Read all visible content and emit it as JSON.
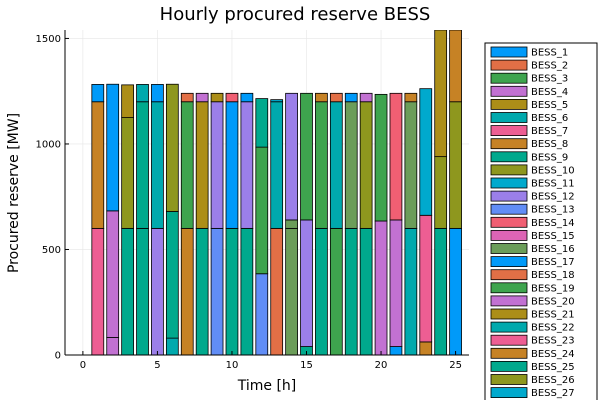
{
  "chart_data": {
    "type": "bar",
    "stacked": true,
    "title": "Hourly procured reserve BESS",
    "xlabel": "Time [h]",
    "ylabel": "Procured reserve [MW]",
    "xlim": [
      -1.2,
      25.9
    ],
    "ylim": [
      0,
      1540
    ],
    "xticks": [
      0,
      5,
      10,
      15,
      20,
      25
    ],
    "yticks": [
      0,
      500,
      1000,
      1500
    ],
    "grid": true,
    "legend_position": "right-outside",
    "series_colors": [
      "#009af9",
      "#e26f46",
      "#3ea44e",
      "#c271d2",
      "#ac8e18",
      "#00a9ad",
      "#ed5e93",
      "#c68225",
      "#00a98d",
      "#8e971e",
      "#00a9cd",
      "#9b7fe9",
      "#618df6",
      "#f05f73",
      "#dd64b5",
      "#6b9d59",
      "#009af9",
      "#e26f46",
      "#3ea44e",
      "#c271d2",
      "#ac8e18",
      "#00a9ad",
      "#ed5e93",
      "#c68225",
      "#00a98d",
      "#8e971e",
      "#00a9cd"
    ],
    "series": [
      {
        "name": "BESS_1"
      },
      {
        "name": "BESS_2"
      },
      {
        "name": "BESS_3"
      },
      {
        "name": "BESS_4"
      },
      {
        "name": "BESS_5"
      },
      {
        "name": "BESS_6"
      },
      {
        "name": "BESS_7"
      },
      {
        "name": "BESS_8"
      },
      {
        "name": "BESS_9"
      },
      {
        "name": "BESS_10"
      },
      {
        "name": "BESS_11"
      },
      {
        "name": "BESS_12"
      },
      {
        "name": "BESS_13"
      },
      {
        "name": "BESS_14"
      },
      {
        "name": "BESS_15"
      },
      {
        "name": "BESS_16"
      },
      {
        "name": "BESS_17"
      },
      {
        "name": "BESS_18"
      },
      {
        "name": "BESS_19"
      },
      {
        "name": "BESS_20"
      },
      {
        "name": "BESS_21"
      },
      {
        "name": "BESS_22"
      },
      {
        "name": "BESS_23"
      },
      {
        "name": "BESS_24"
      },
      {
        "name": "BESS_25"
      },
      {
        "name": "BESS_26"
      },
      {
        "name": "BESS_27"
      }
    ],
    "hours": [
      {
        "x": 1,
        "segments": [
          [
            22,
            600
          ],
          [
            23,
            600
          ],
          [
            0,
            82
          ]
        ]
      },
      {
        "x": 2,
        "segments": [
          [
            19,
            83
          ],
          [
            3,
            600
          ],
          [
            0,
            600
          ]
        ]
      },
      {
        "x": 3,
        "segments": [
          [
            8,
            600
          ],
          [
            9,
            525
          ],
          [
            4,
            155
          ]
        ]
      },
      {
        "x": 4,
        "segments": [
          [
            24,
            600
          ],
          [
            8,
            600
          ],
          [
            5,
            82
          ]
        ]
      },
      {
        "x": 5,
        "segments": [
          [
            11,
            600
          ],
          [
            5,
            600
          ],
          [
            0,
            82
          ]
        ]
      },
      {
        "x": 6,
        "segments": [
          [
            5,
            80
          ],
          [
            8,
            600
          ],
          [
            9,
            603
          ]
        ]
      },
      {
        "x": 7,
        "segments": [
          [
            7,
            600
          ],
          [
            2,
            600
          ],
          [
            1,
            40
          ]
        ]
      },
      {
        "x": 8,
        "segments": [
          [
            8,
            600
          ],
          [
            4,
            600
          ],
          [
            3,
            40
          ]
        ]
      },
      {
        "x": 9,
        "segments": [
          [
            12,
            600
          ],
          [
            11,
            600
          ],
          [
            4,
            40
          ]
        ]
      },
      {
        "x": 10,
        "segments": [
          [
            8,
            600
          ],
          [
            0,
            600
          ],
          [
            13,
            40
          ]
        ]
      },
      {
        "x": 11,
        "segments": [
          [
            8,
            600
          ],
          [
            11,
            600
          ],
          [
            0,
            40
          ]
        ]
      },
      {
        "x": 12,
        "segments": [
          [
            12,
            385
          ],
          [
            2,
            600
          ],
          [
            8,
            230
          ]
        ]
      },
      {
        "x": 13,
        "segments": [
          [
            1,
            600
          ],
          [
            5,
            600
          ],
          [
            10,
            10
          ]
        ]
      },
      {
        "x": 14,
        "segments": [
          [
            15,
            600
          ],
          [
            15,
            40
          ],
          [
            11,
            600
          ]
        ]
      },
      {
        "x": 15,
        "segments": [
          [
            8,
            40
          ],
          [
            11,
            600
          ],
          [
            2,
            600
          ]
        ]
      },
      {
        "x": 16,
        "segments": [
          [
            24,
            600
          ],
          [
            2,
            600
          ],
          [
            7,
            40
          ]
        ]
      },
      {
        "x": 17,
        "segments": [
          [
            2,
            600
          ],
          [
            5,
            600
          ],
          [
            1,
            40
          ]
        ]
      },
      {
        "x": 18,
        "segments": [
          [
            8,
            600
          ],
          [
            15,
            600
          ],
          [
            0,
            40
          ]
        ]
      },
      {
        "x": 19,
        "segments": [
          [
            24,
            600
          ],
          [
            9,
            600
          ],
          [
            3,
            40
          ]
        ]
      },
      {
        "x": 20,
        "segments": [
          [
            19,
            635
          ],
          [
            2,
            600
          ]
        ]
      },
      {
        "x": 21,
        "segments": [
          [
            0,
            40
          ],
          [
            3,
            600
          ],
          [
            13,
            600
          ]
        ]
      },
      {
        "x": 22,
        "segments": [
          [
            5,
            600
          ],
          [
            15,
            600
          ],
          [
            7,
            40
          ]
        ]
      },
      {
        "x": 23,
        "segments": [
          [
            7,
            62
          ],
          [
            22,
            600
          ],
          [
            10,
            600
          ]
        ]
      },
      {
        "x": 24,
        "segments": [
          [
            8,
            600
          ],
          [
            25,
            340
          ],
          [
            4,
            600
          ]
        ]
      },
      {
        "x": 25,
        "segments": [
          [
            0,
            600
          ],
          [
            25,
            600
          ],
          [
            7,
            340
          ]
        ]
      }
    ]
  }
}
